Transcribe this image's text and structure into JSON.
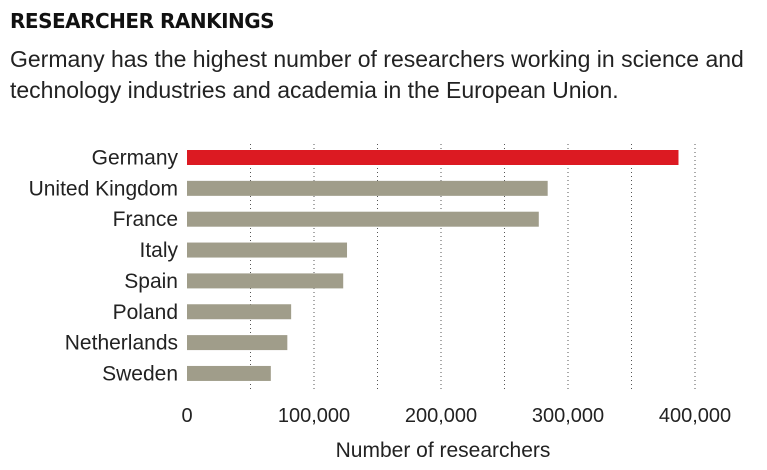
{
  "header": {
    "title": "RESEARCHER RANKINGS",
    "subtitle": "Germany has the highest number of researchers working in science and technology industries and academia in the European Union."
  },
  "colors": {
    "highlight": "#dc1a22",
    "bar": "#a09d8a",
    "grid": "#555555",
    "text": "#222222"
  },
  "chart_data": {
    "type": "bar",
    "orientation": "horizontal",
    "title": "RESEARCHER RANKINGS",
    "categories": [
      "Germany",
      "United Kingdom",
      "France",
      "Italy",
      "Spain",
      "Poland",
      "Netherlands",
      "Sweden"
    ],
    "values": [
      387000,
      284000,
      277000,
      126000,
      123000,
      82000,
      79000,
      66000
    ],
    "highlight": "Germany",
    "xlabel": "Number of researchers",
    "ylabel": "",
    "xlim": [
      0,
      400000
    ],
    "xticks": [
      0,
      100000,
      200000,
      300000,
      400000
    ],
    "xtick_labels": [
      "0",
      "100,000",
      "200,000",
      "300,000",
      "400,000"
    ],
    "gridlines": [
      50000,
      100000,
      150000,
      200000,
      250000,
      300000,
      350000,
      400000
    ],
    "grid": true
  }
}
